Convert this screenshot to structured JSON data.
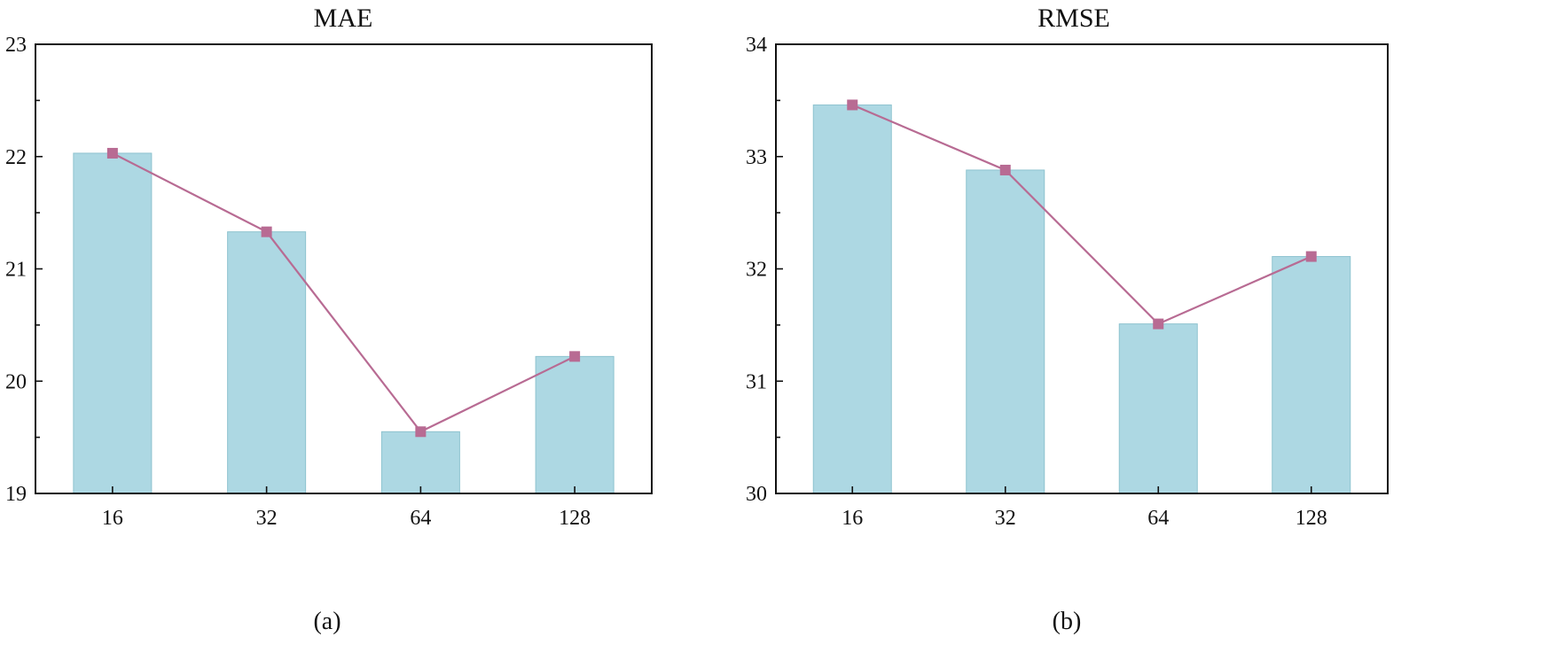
{
  "chart_data": [
    {
      "type": "bar",
      "title": "MAE",
      "caption": "(a)",
      "categories": [
        "16",
        "32",
        "64",
        "128"
      ],
      "values": [
        22.03,
        21.33,
        19.55,
        20.22
      ],
      "line_values": [
        22.03,
        21.33,
        19.55,
        20.22
      ],
      "ylim": [
        19,
        23
      ],
      "yticks": [
        "19",
        "20",
        "21",
        "22",
        "23"
      ],
      "grid": false,
      "legend": "none"
    },
    {
      "type": "bar",
      "title": "RMSE",
      "caption": "(b)",
      "categories": [
        "16",
        "32",
        "64",
        "128"
      ],
      "values": [
        33.46,
        32.88,
        31.51,
        32.11
      ],
      "line_values": [
        33.46,
        32.88,
        31.51,
        32.11
      ],
      "ylim": [
        30,
        34
      ],
      "yticks": [
        "30",
        "31",
        "32",
        "33",
        "34"
      ],
      "grid": false,
      "legend": "none"
    }
  ],
  "colors": {
    "bar_fill": "#add8e3",
    "bar_edge": "#8ec3cf",
    "line": "#b86b93",
    "marker": "#b86b93"
  }
}
